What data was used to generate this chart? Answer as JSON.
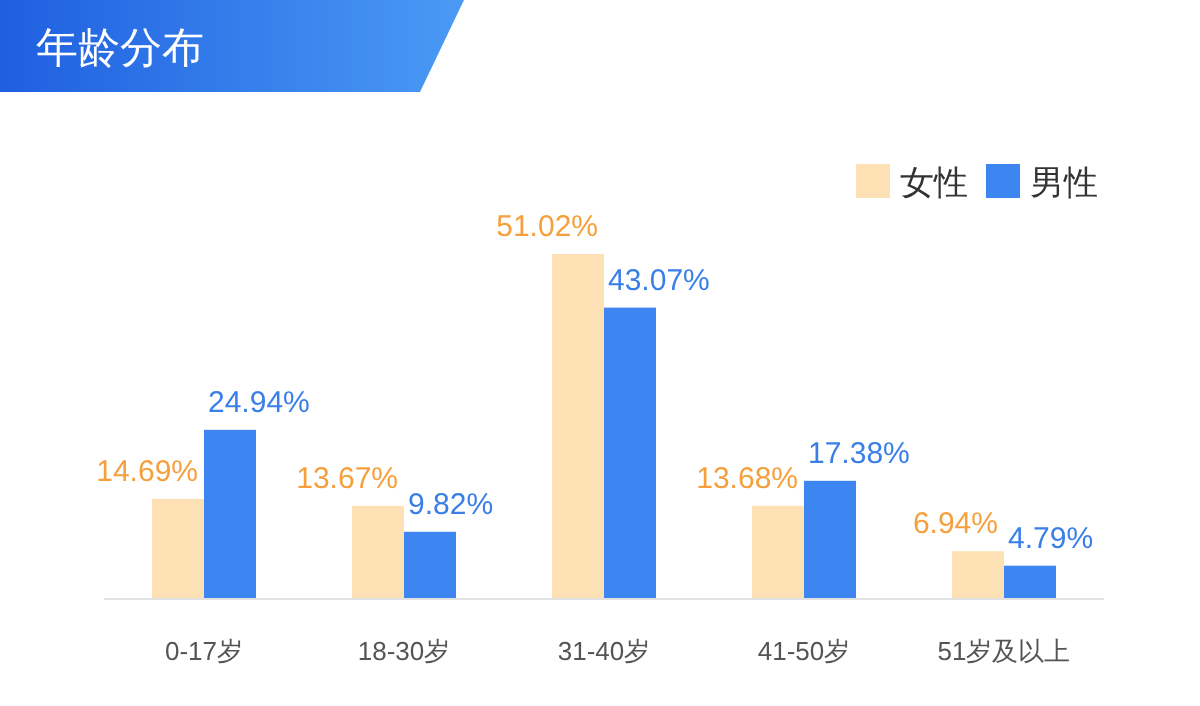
{
  "chart_data": {
    "type": "bar",
    "title": "年龄分布",
    "legend": "top right",
    "categories": [
      "0-17岁",
      "18-30岁",
      "31-40岁",
      "41-50岁",
      "51岁及以上"
    ],
    "series": [
      {
        "name": "女性",
        "color": "#fde0b4",
        "values": [
          14.69,
          13.67,
          51.02,
          13.68,
          6.94
        ],
        "value_labels": [
          "14.69%",
          "13.67%",
          "51.02%",
          "13.68%",
          "6.94%"
        ]
      },
      {
        "name": "男性",
        "color": "#3d85f0",
        "values": [
          24.94,
          9.82,
          43.07,
          17.38,
          4.79
        ],
        "value_labels": [
          "24.94%",
          "9.82%",
          "43.07%",
          "17.38%",
          "4.79%"
        ]
      }
    ]
  }
}
